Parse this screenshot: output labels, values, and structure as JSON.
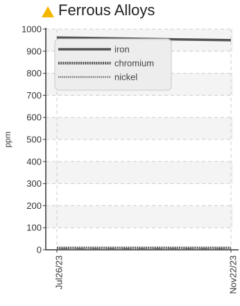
{
  "chart_data": {
    "type": "line",
    "title": "Ferrous Alloys",
    "ylabel": "ppm",
    "xlabel": "",
    "ylim": [
      0,
      1000
    ],
    "yticks": [
      0,
      100,
      200,
      300,
      400,
      500,
      600,
      700,
      800,
      900,
      1000
    ],
    "x": [
      "Jul26/23",
      "Nov22/23"
    ],
    "series": [
      {
        "name": "iron",
        "values": [
          962,
          950
        ],
        "style": "solid",
        "color": "#555555"
      },
      {
        "name": "chromium",
        "values": [
          8,
          8
        ],
        "style": "dotted",
        "color": "#555555"
      },
      {
        "name": "nickel",
        "values": [
          4,
          4
        ],
        "style": "dotted-thin",
        "color": "#777777"
      }
    ],
    "grid": true,
    "legend": "top-left",
    "title_icon": "warning-triangle-icon",
    "title_icon_color": "#f5b800"
  }
}
